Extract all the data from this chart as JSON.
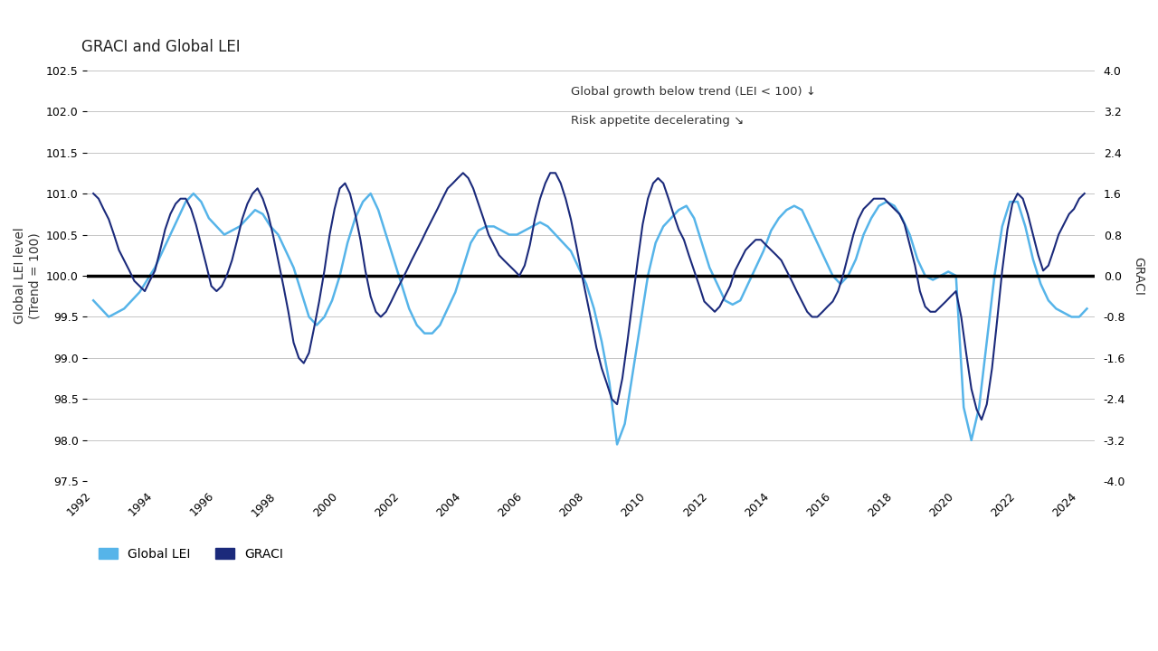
{
  "title": "GRACI and Global LEI",
  "ylabel_left": "Global LEI level\n(Trend = 100)",
  "ylabel_right": "GRACI",
  "ylim_left": [
    97.5,
    102.5
  ],
  "ylim_right": [
    -4.0,
    4.0
  ],
  "yticks_left": [
    97.5,
    98.0,
    98.5,
    99.0,
    99.5,
    100.0,
    100.5,
    101.0,
    101.5,
    102.0,
    102.5
  ],
  "yticks_right": [
    -4.0,
    -3.2,
    -2.4,
    -1.6,
    -0.8,
    0.0,
    0.8,
    1.6,
    2.4,
    3.2,
    4.0
  ],
  "xticks": [
    1992,
    1994,
    1996,
    1998,
    2000,
    2002,
    2004,
    2006,
    2008,
    2010,
    2012,
    2014,
    2016,
    2018,
    2020,
    2022,
    2024
  ],
  "color_lei": "#56B4E9",
  "color_graci": "#1B2A7B",
  "color_hline": "#000000",
  "legend_lei": "Global LEI",
  "legend_graci": "GRACI",
  "annotation1": "Global growth below trend (LEI < 100)",
  "annotation1_color": "#56B4E9",
  "annotation2": "Risk appetite decelerating",
  "annotation2_color": "#1B2A7B",
  "background_color": "#ffffff",
  "lei_data": {
    "years": [
      1992.0,
      1992.25,
      1992.5,
      1992.75,
      1993.0,
      1993.25,
      1993.5,
      1993.75,
      1994.0,
      1994.25,
      1994.5,
      1994.75,
      1995.0,
      1995.25,
      1995.5,
      1995.75,
      1996.0,
      1996.25,
      1996.5,
      1996.75,
      1997.0,
      1997.25,
      1997.5,
      1997.75,
      1998.0,
      1998.25,
      1998.5,
      1998.75,
      1999.0,
      1999.25,
      1999.5,
      1999.75,
      2000.0,
      2000.25,
      2000.5,
      2000.75,
      2001.0,
      2001.25,
      2001.5,
      2001.75,
      2002.0,
      2002.25,
      2002.5,
      2002.75,
      2003.0,
      2003.25,
      2003.5,
      2003.75,
      2004.0,
      2004.25,
      2004.5,
      2004.75,
      2005.0,
      2005.25,
      2005.5,
      2005.75,
      2006.0,
      2006.25,
      2006.5,
      2006.75,
      2007.0,
      2007.25,
      2007.5,
      2007.75,
      2008.0,
      2008.25,
      2008.5,
      2008.75,
      2009.0,
      2009.25,
      2009.5,
      2009.75,
      2010.0,
      2010.25,
      2010.5,
      2010.75,
      2011.0,
      2011.25,
      2011.5,
      2011.75,
      2012.0,
      2012.25,
      2012.5,
      2012.75,
      2013.0,
      2013.25,
      2013.5,
      2013.75,
      2014.0,
      2014.25,
      2014.5,
      2014.75,
      2015.0,
      2015.25,
      2015.5,
      2015.75,
      2016.0,
      2016.25,
      2016.5,
      2016.75,
      2017.0,
      2017.25,
      2017.5,
      2017.75,
      2018.0,
      2018.25,
      2018.5,
      2018.75,
      2019.0,
      2019.25,
      2019.5,
      2019.75,
      2020.0,
      2020.25,
      2020.5,
      2020.75,
      2021.0,
      2021.25,
      2021.5,
      2021.75,
      2022.0,
      2022.25,
      2022.5,
      2022.75,
      2023.0,
      2023.25,
      2023.5,
      2023.75,
      2024.0,
      2024.25
    ],
    "values": [
      99.7,
      99.6,
      99.5,
      99.55,
      99.6,
      99.7,
      99.8,
      99.95,
      100.1,
      100.3,
      100.5,
      100.7,
      100.9,
      101.0,
      100.9,
      100.7,
      100.6,
      100.5,
      100.55,
      100.6,
      100.7,
      100.8,
      100.75,
      100.6,
      100.5,
      100.3,
      100.1,
      99.8,
      99.5,
      99.4,
      99.5,
      99.7,
      100.0,
      100.4,
      100.7,
      100.9,
      101.0,
      100.8,
      100.5,
      100.2,
      99.9,
      99.6,
      99.4,
      99.3,
      99.3,
      99.4,
      99.6,
      99.8,
      100.1,
      100.4,
      100.55,
      100.6,
      100.6,
      100.55,
      100.5,
      100.5,
      100.55,
      100.6,
      100.65,
      100.6,
      100.5,
      100.4,
      100.3,
      100.1,
      99.9,
      99.6,
      99.2,
      98.7,
      97.95,
      98.2,
      98.8,
      99.4,
      100.0,
      100.4,
      100.6,
      100.7,
      100.8,
      100.85,
      100.7,
      100.4,
      100.1,
      99.9,
      99.7,
      99.65,
      99.7,
      99.9,
      100.1,
      100.3,
      100.55,
      100.7,
      100.8,
      100.85,
      100.8,
      100.6,
      100.4,
      100.2,
      100.0,
      99.9,
      100.0,
      100.2,
      100.5,
      100.7,
      100.85,
      100.9,
      100.85,
      100.7,
      100.5,
      100.2,
      100.0,
      99.95,
      100.0,
      100.05,
      100.0,
      98.4,
      98.0,
      98.4,
      99.2,
      100.0,
      100.6,
      100.9,
      100.9,
      100.6,
      100.2,
      99.9,
      99.7,
      99.6,
      99.55,
      99.5,
      99.5,
      99.6
    ]
  },
  "graci_data": {
    "years": [
      1992.0,
      1992.17,
      1992.33,
      1992.5,
      1992.67,
      1992.83,
      1993.0,
      1993.17,
      1993.33,
      1993.5,
      1993.67,
      1993.83,
      1994.0,
      1994.17,
      1994.33,
      1994.5,
      1994.67,
      1994.83,
      1995.0,
      1995.17,
      1995.33,
      1995.5,
      1995.67,
      1995.83,
      1996.0,
      1996.17,
      1996.33,
      1996.5,
      1996.67,
      1996.83,
      1997.0,
      1997.17,
      1997.33,
      1997.5,
      1997.67,
      1997.83,
      1998.0,
      1998.17,
      1998.33,
      1998.5,
      1998.67,
      1998.83,
      1999.0,
      1999.17,
      1999.33,
      1999.5,
      1999.67,
      1999.83,
      2000.0,
      2000.17,
      2000.33,
      2000.5,
      2000.67,
      2000.83,
      2001.0,
      2001.17,
      2001.33,
      2001.5,
      2001.67,
      2001.83,
      2002.0,
      2002.17,
      2002.33,
      2002.5,
      2002.67,
      2002.83,
      2003.0,
      2003.17,
      2003.33,
      2003.5,
      2003.67,
      2003.83,
      2004.0,
      2004.17,
      2004.33,
      2004.5,
      2004.67,
      2004.83,
      2005.0,
      2005.17,
      2005.33,
      2005.5,
      2005.67,
      2005.83,
      2006.0,
      2006.17,
      2006.33,
      2006.5,
      2006.67,
      2006.83,
      2007.0,
      2007.17,
      2007.33,
      2007.5,
      2007.67,
      2007.83,
      2008.0,
      2008.17,
      2008.33,
      2008.5,
      2008.67,
      2008.83,
      2009.0,
      2009.17,
      2009.33,
      2009.5,
      2009.67,
      2009.83,
      2010.0,
      2010.17,
      2010.33,
      2010.5,
      2010.67,
      2010.83,
      2011.0,
      2011.17,
      2011.33,
      2011.5,
      2011.67,
      2011.83,
      2012.0,
      2012.17,
      2012.33,
      2012.5,
      2012.67,
      2012.83,
      2013.0,
      2013.17,
      2013.33,
      2013.5,
      2013.67,
      2013.83,
      2014.0,
      2014.17,
      2014.33,
      2014.5,
      2014.67,
      2014.83,
      2015.0,
      2015.17,
      2015.33,
      2015.5,
      2015.67,
      2015.83,
      2016.0,
      2016.17,
      2016.33,
      2016.5,
      2016.67,
      2016.83,
      2017.0,
      2017.17,
      2017.33,
      2017.5,
      2017.67,
      2017.83,
      2018.0,
      2018.17,
      2018.33,
      2018.5,
      2018.67,
      2018.83,
      2019.0,
      2019.17,
      2019.33,
      2019.5,
      2019.67,
      2019.83,
      2020.0,
      2020.17,
      2020.33,
      2020.5,
      2020.67,
      2020.83,
      2021.0,
      2021.17,
      2021.33,
      2021.5,
      2021.67,
      2021.83,
      2022.0,
      2022.17,
      2022.33,
      2022.5,
      2022.67,
      2022.83,
      2023.0,
      2023.17,
      2023.33,
      2023.5,
      2023.67,
      2023.83,
      2024.0,
      2024.17
    ],
    "values": [
      1.6,
      1.5,
      1.3,
      1.1,
      0.8,
      0.5,
      0.3,
      0.1,
      -0.1,
      -0.2,
      -0.3,
      -0.1,
      0.1,
      0.5,
      0.9,
      1.2,
      1.4,
      1.5,
      1.5,
      1.3,
      1.0,
      0.6,
      0.2,
      -0.2,
      -0.3,
      -0.2,
      0.0,
      0.3,
      0.7,
      1.1,
      1.4,
      1.6,
      1.7,
      1.5,
      1.2,
      0.8,
      0.3,
      -0.2,
      -0.7,
      -1.3,
      -1.6,
      -1.7,
      -1.5,
      -1.0,
      -0.5,
      0.1,
      0.8,
      1.3,
      1.7,
      1.8,
      1.6,
      1.2,
      0.7,
      0.1,
      -0.4,
      -0.7,
      -0.8,
      -0.7,
      -0.5,
      -0.3,
      -0.1,
      0.1,
      0.3,
      0.5,
      0.7,
      0.9,
      1.1,
      1.3,
      1.5,
      1.7,
      1.8,
      1.9,
      2.0,
      1.9,
      1.7,
      1.4,
      1.1,
      0.8,
      0.6,
      0.4,
      0.3,
      0.2,
      0.1,
      0.0,
      0.2,
      0.6,
      1.1,
      1.5,
      1.8,
      2.0,
      2.0,
      1.8,
      1.5,
      1.1,
      0.6,
      0.1,
      -0.4,
      -0.9,
      -1.4,
      -1.8,
      -2.1,
      -2.4,
      -2.5,
      -2.0,
      -1.3,
      -0.5,
      0.3,
      1.0,
      1.5,
      1.8,
      1.9,
      1.8,
      1.5,
      1.2,
      0.9,
      0.7,
      0.4,
      0.1,
      -0.2,
      -0.5,
      -0.6,
      -0.7,
      -0.6,
      -0.4,
      -0.2,
      0.1,
      0.3,
      0.5,
      0.6,
      0.7,
      0.7,
      0.6,
      0.5,
      0.4,
      0.3,
      0.1,
      -0.1,
      -0.3,
      -0.5,
      -0.7,
      -0.8,
      -0.8,
      -0.7,
      -0.6,
      -0.5,
      -0.3,
      0.0,
      0.4,
      0.8,
      1.1,
      1.3,
      1.4,
      1.5,
      1.5,
      1.5,
      1.4,
      1.3,
      1.2,
      1.0,
      0.6,
      0.2,
      -0.3,
      -0.6,
      -0.7,
      -0.7,
      -0.6,
      -0.5,
      -0.4,
      -0.3,
      -0.8,
      -1.5,
      -2.2,
      -2.6,
      -2.8,
      -2.5,
      -1.8,
      -0.9,
      0.1,
      0.9,
      1.4,
      1.6,
      1.5,
      1.2,
      0.8,
      0.4,
      0.1,
      0.2,
      0.5,
      0.8,
      1.0,
      1.2,
      1.3,
      1.5,
      1.6
    ]
  }
}
